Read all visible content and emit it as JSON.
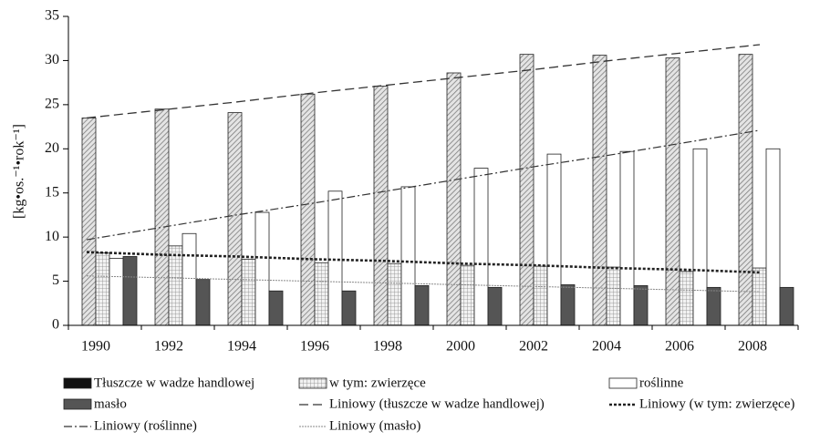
{
  "chart_data": {
    "type": "bar",
    "ylabel": "[kg•os.⁻¹•rok⁻¹]",
    "categories": [
      "1990",
      "1992",
      "1994",
      "1996",
      "1998",
      "2000",
      "2002",
      "2004",
      "2006",
      "2008"
    ],
    "series": [
      {
        "name": "Tłuszcze w wadze handlowej",
        "color": "#cfcfcf",
        "pattern": "hatch",
        "values": [
          23.5,
          24.5,
          24.1,
          26.2,
          27.1,
          28.6,
          30.7,
          30.6,
          30.3,
          30.7
        ]
      },
      {
        "name": "w tym: zwierzęce",
        "color": "#e8e8e8",
        "pattern": "grid",
        "values": [
          8.2,
          9.0,
          7.5,
          7.1,
          7.0,
          6.8,
          6.7,
          6.6,
          6.1,
          6.5
        ]
      },
      {
        "name": "roślinne",
        "color": "#ffffff",
        "pattern": "none",
        "values": [
          7.6,
          10.4,
          12.8,
          15.2,
          15.7,
          17.8,
          19.4,
          19.7,
          20.0,
          20.0
        ]
      },
      {
        "name": "masło",
        "color": "#555555",
        "pattern": "none",
        "values": [
          7.8,
          5.2,
          3.9,
          3.9,
          4.5,
          4.3,
          4.6,
          4.5,
          4.3,
          4.3
        ]
      }
    ],
    "trendlines": [
      {
        "name": "Liniowy (tłuszcze w wadze handlowej)",
        "color": "#333333",
        "dash": "dashed",
        "values": [
          23.5,
          24.4,
          25.3,
          26.3,
          27.2,
          28.1,
          29.0,
          30.0,
          30.9,
          31.8
        ]
      },
      {
        "name": "Liniowy (w tym: zwierzęce)",
        "color": "#222222",
        "dash": "dotted",
        "values": [
          8.3,
          8.0,
          7.8,
          7.5,
          7.3,
          7.0,
          6.8,
          6.5,
          6.3,
          6.0
        ]
      },
      {
        "name": "Liniowy (roślinne)",
        "color": "#333333",
        "dash": "dashdot",
        "values": [
          9.7,
          11.1,
          12.5,
          13.8,
          15.2,
          16.6,
          18.0,
          19.3,
          20.7,
          22.1
        ]
      },
      {
        "name": "Liniowy (masło)",
        "color": "#888888",
        "dash": "thin-dotted",
        "values": [
          5.6,
          5.4,
          5.2,
          5.0,
          4.8,
          4.6,
          4.4,
          4.2,
          4.0,
          3.8
        ]
      }
    ],
    "ylim": [
      0,
      35
    ],
    "yticks": [
      0,
      5,
      10,
      15,
      20,
      25,
      30,
      35
    ],
    "grid": false
  }
}
